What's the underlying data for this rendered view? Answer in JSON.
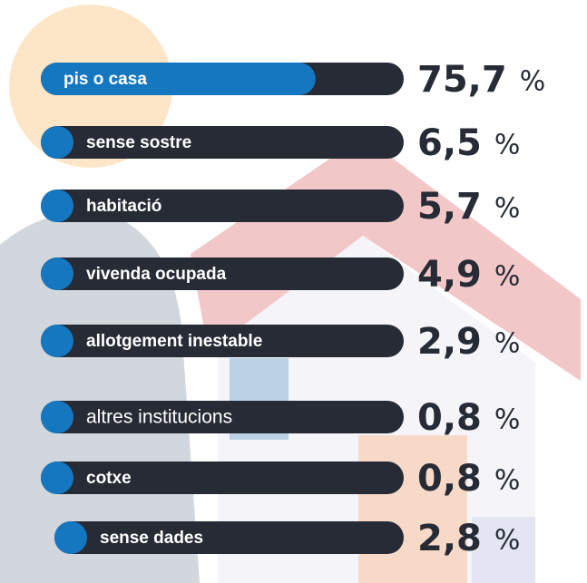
{
  "chart_data": {
    "type": "bar",
    "categories": [
      "pis o casa",
      "sense sostre",
      "habitació",
      "vivenda ocupada",
      "allotgement inestable",
      "altres institucions",
      "cotxe",
      "sense dades"
    ],
    "values": [
      75.7,
      6.5,
      5.7,
      4.9,
      2.9,
      0.8,
      0.8,
      2.8
    ],
    "value_labels": [
      "75,7",
      "6,5",
      "5,7",
      "4,9",
      "2,9",
      "0,8",
      "0,8",
      "2,8"
    ],
    "unit": "%",
    "ylim": [
      0,
      100
    ],
    "color": "#1677c1",
    "track_color": "#262b36"
  }
}
